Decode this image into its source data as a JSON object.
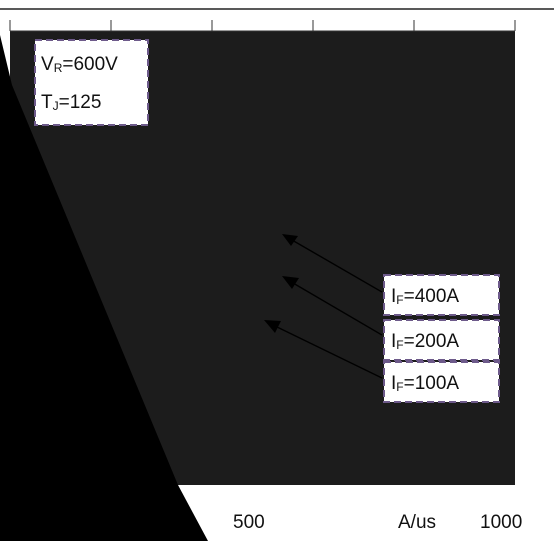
{
  "chart_data": {
    "type": "line",
    "title": "",
    "xlabel": "A/us",
    "ylabel": "",
    "x_ticks": [
      "500",
      "1000"
    ],
    "series": [],
    "annotations": {
      "conditions": [
        {
          "main": "V",
          "sub": "R",
          "rest": "=600V"
        },
        {
          "main": "T",
          "sub": "J",
          "rest": "=125"
        }
      ],
      "curve_labels": [
        {
          "main": "I",
          "sub": "F",
          "rest": "=400A"
        },
        {
          "main": "I",
          "sub": "F",
          "rest": "=200A"
        },
        {
          "main": "I",
          "sub": "F",
          "rest": "=100A"
        }
      ]
    },
    "grid": true,
    "colors": {
      "plot_background": "#1c1c1c",
      "label_box_border": "#6d5a8a",
      "label_box_fill": "#ffffff",
      "arrow": "#000000"
    }
  }
}
